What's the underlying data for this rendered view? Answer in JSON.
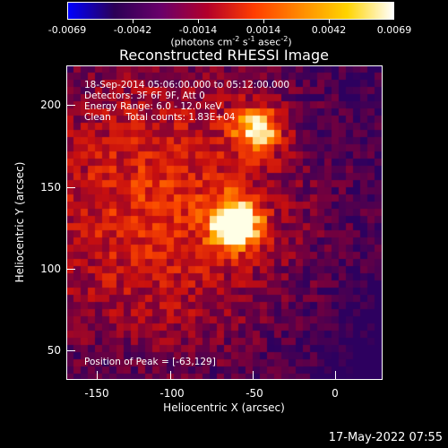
{
  "colorbar": {
    "colors": [
      "#0000ff",
      "#2b0056",
      "#6a006a",
      "#b3002a",
      "#ff3d00",
      "#ff8a00",
      "#ffd400",
      "#ffffff"
    ],
    "ticks": [
      "-0.0069",
      "-0.0042",
      "-0.0014",
      "0.0014",
      "0.0042",
      "0.0069"
    ],
    "unit_a": "(photons cm",
    "unit_sup1": "-2",
    "unit_b": " s",
    "unit_sup2": "-1",
    "unit_c": " asec",
    "unit_sup3": "-2",
    "unit_d": ")"
  },
  "title": "Reconstructed RHESSI Image",
  "annotations": {
    "time_range": "18-Sep-2014 05:06:00.000 to 05:12:00.000",
    "detectors": "Detectors: 3F 6F 9F, Att 0",
    "energy": "Energy Range: 6.0 - 12.0 keV",
    "clean": "Clean     Total counts: 1.83E+04",
    "peak": "Position of Peak = [-63,129]"
  },
  "axes": {
    "x_label": "Heliocentric X (arcsec)",
    "y_label": "Heliocentric Y (arcsec)",
    "x_ticks": [
      "-150",
      "-100",
      "-50",
      "0"
    ],
    "y_ticks": [
      "200",
      "150",
      "100",
      "50"
    ],
    "xlim": [
      -166,
      26
    ],
    "ylim": [
      33,
      226
    ]
  },
  "image_sources": [
    {
      "x": -63,
      "y": 129,
      "peak": 1.0
    },
    {
      "x": -50,
      "y": 187,
      "peak": 0.75
    }
  ],
  "timestamp": "17-May-2022 07:55"
}
